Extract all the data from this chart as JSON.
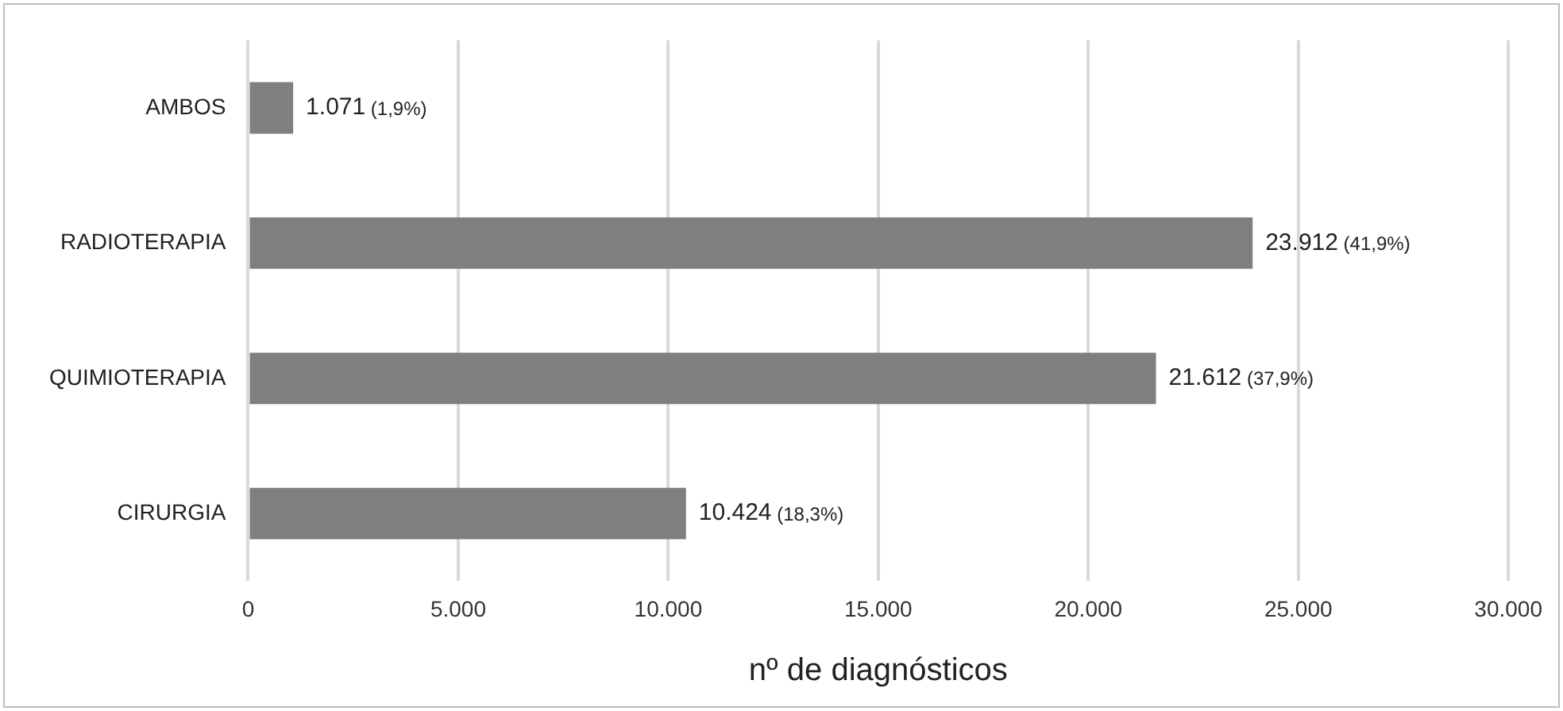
{
  "chart_data": {
    "type": "bar",
    "orientation": "horizontal",
    "xlabel": "nº de diagnósticos",
    "categories": [
      "AMBOS",
      "RADIOTERAPIA",
      "QUIMIOTERAPIA",
      "CIRURGIA"
    ],
    "values": [
      1071,
      23912,
      21612,
      10424
    ],
    "value_labels": [
      "1.071 (1,9%)",
      "23.912 (41,9%)",
      "21.612 (37,9%)",
      "10.424 (18,3%)"
    ],
    "color": "#7f7f7f",
    "xlim": [
      0,
      30000
    ],
    "xticks": [
      {
        "value": 0,
        "label": "0"
      },
      {
        "value": 5000,
        "label": "5.000"
      },
      {
        "value": 10000,
        "label": "10.000"
      },
      {
        "value": 15000,
        "label": "15.000"
      },
      {
        "value": 20000,
        "label": "20.000"
      },
      {
        "value": 25000,
        "label": "25.000"
      },
      {
        "value": 30000,
        "label": "30.000"
      }
    ],
    "grid": "x",
    "legend": false
  }
}
